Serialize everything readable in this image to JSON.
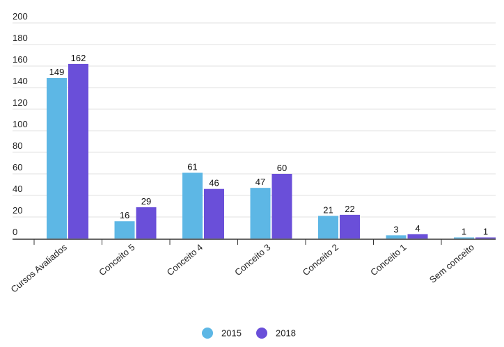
{
  "chart_data": {
    "type": "bar",
    "title": "",
    "xlabel": "",
    "ylabel": "",
    "categories": [
      "Cursos Avaliados",
      "Conceito 5",
      "Conceito 4",
      "Conceito 3",
      "Conceito 2",
      "Conceito 1",
      "Sem conceito"
    ],
    "series": [
      {
        "name": "2015",
        "values": [
          149,
          16,
          61,
          47,
          21,
          3,
          1
        ],
        "color": "#5DB7E5"
      },
      {
        "name": "2018",
        "values": [
          162,
          29,
          46,
          60,
          22,
          4,
          1
        ],
        "color": "#6A4FD9"
      }
    ],
    "ylim": [
      0,
      200
    ],
    "yticks": [
      0,
      20,
      40,
      60,
      80,
      100,
      120,
      140,
      160,
      180,
      200
    ],
    "grid": true,
    "legend": "bottom-center",
    "data_labels": true
  }
}
